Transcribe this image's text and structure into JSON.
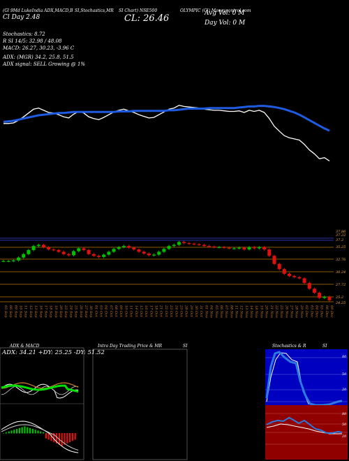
{
  "header": {
    "line1": "(Gl 9Md LukeIndia ADX,MACD,B",
    "line1b": "SI,Stochastics,MR",
    "line1c": "SI Chart) NSE500",
    "line1d": "OLYMPIC (Gl) Moneycontrol.com",
    "line2": "Cl  Day   2.48",
    "close": "CL: 26.46",
    "avg_vol": "Avg Vol: 0   M",
    "day_vol": "Day Vol: 0   M",
    "stoch": "Stochastics: 8.72",
    "rsi": "R          SI 14/5: 32.98  / 48.08",
    "macd": "MACD: 26.27,  30.23,  -3.96   C",
    "adx": "ADX:                         (MGR) 34.2,  25.8,  51.5",
    "adx_signal": "ADX  signal: SELL  Growing  @ 1%"
  },
  "panels": {
    "adx_title": "ADX  & MACD",
    "adx_values": "ADX: 34.21 +DY: 25.25 -DY: 51.52",
    "intraday_title": "Intra  Day Trading Price  & MR",
    "intraday_si": "SI",
    "stoch_title": "Stochastics & R",
    "stoch_si": "SI"
  },
  "chart_data": {
    "type": "line",
    "x": [
      "05 Sep",
      "06 Sep",
      "09 Sep",
      "10 Sep",
      "11 Sep",
      "12 Sep",
      "13 Sep",
      "16 Sep",
      "17 Sep",
      "18 Sep",
      "19 Sep",
      "20 Sep",
      "23 Sep",
      "24 Sep",
      "25 Sep",
      "26 Sep",
      "27 Sep",
      "30 Sep",
      "01 Oct",
      "03 Oct",
      "04 Oct",
      "07 Oct",
      "08 Oct",
      "09 Oct",
      "10 Oct",
      "11 Oct",
      "14 Oct",
      "15 Oct",
      "16 Oct",
      "17 Oct",
      "18 Oct",
      "21 Oct",
      "22 Oct",
      "23 Oct",
      "24 Oct",
      "25 Oct",
      "28 Oct",
      "29 Oct",
      "30 Oct",
      "31 Oct",
      "01 Nov",
      "04 Nov",
      "05 Nov",
      "06 Nov",
      "07 Nov",
      "08 Nov",
      "11 Nov",
      "12 Nov",
      "13 Nov",
      "14 Nov",
      "18 Nov",
      "19 Nov",
      "20 Nov",
      "21 Nov",
      "22 Nov",
      "25 Nov",
      "26 Nov",
      "27 Nov",
      "28 Nov",
      "29 Nov",
      "02 Dec",
      "03 Dec",
      "04 Dec",
      "05 Dec",
      "06 Dec",
      "09 Dec"
    ],
    "series": [
      {
        "name": "Price",
        "color": "#ffffff",
        "values": [
          33.3,
          33.3,
          33.4,
          33.9,
          34.5,
          35.2,
          35.9,
          36.1,
          35.7,
          35.3,
          35.2,
          34.9,
          34.5,
          34.3,
          35.0,
          35.5,
          35.2,
          34.5,
          34.2,
          34.0,
          34.4,
          34.9,
          35.4,
          35.7,
          35.9,
          35.6,
          35.3,
          34.9,
          34.6,
          34.3,
          34.4,
          34.9,
          35.4,
          35.9,
          36.1,
          36.6,
          36.4,
          36.3,
          36.2,
          36.1,
          35.9,
          35.8,
          35.7,
          35.7,
          35.6,
          35.5,
          35.5,
          35.6,
          35.3,
          35.7,
          35.5,
          35.7,
          35.3,
          34.2,
          32.8,
          31.9,
          31.1,
          30.7,
          30.5,
          30.3,
          29.5,
          28.5,
          27.8,
          26.9,
          27.1,
          26.5
        ]
      },
      {
        "name": "EMA",
        "color": "#1e5be0",
        "values": [
          33.6,
          33.7,
          33.8,
          34.0,
          34.2,
          34.4,
          34.6,
          34.8,
          34.9,
          35.0,
          35.1,
          35.2,
          35.2,
          35.3,
          35.4,
          35.4,
          35.4,
          35.4,
          35.4,
          35.4,
          35.4,
          35.4,
          35.4,
          35.5,
          35.5,
          35.5,
          35.6,
          35.6,
          35.6,
          35.6,
          35.6,
          35.6,
          35.6,
          35.7,
          35.7,
          35.8,
          35.9,
          36.0,
          36.0,
          36.0,
          36.0,
          36.1,
          36.1,
          36.1,
          36.1,
          36.1,
          36.1,
          36.2,
          36.3,
          36.4,
          36.4,
          36.5,
          36.5,
          36.4,
          36.3,
          36.1,
          35.9,
          35.6,
          35.3,
          34.9,
          34.4,
          33.9,
          33.4,
          32.9,
          32.4,
          32.0
        ]
      }
    ],
    "price_axis_labels": [
      "37.86",
      "37.22",
      "37.2",
      "35.25",
      "32.76",
      "30.24",
      "27.72",
      "25.2",
      "24.25"
    ],
    "annotation": "CL: 26.46"
  }
}
